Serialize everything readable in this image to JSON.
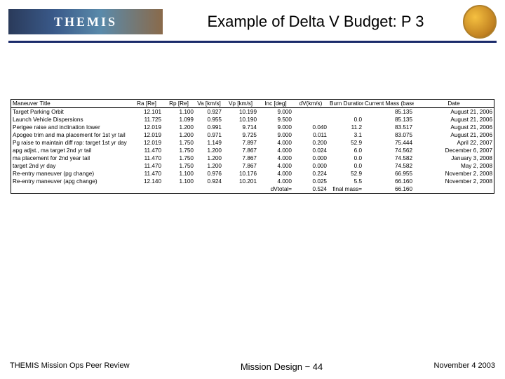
{
  "header": {
    "logo_text": "THEMIS",
    "title": "Example of Delta V Budget: P 3"
  },
  "table": {
    "columns": [
      {
        "key": "title",
        "label": "Maneuver Title",
        "align": "left"
      },
      {
        "key": "ra",
        "label": "Ra [Re]",
        "align": "right"
      },
      {
        "key": "rp",
        "label": "Rp [Re]",
        "align": "right"
      },
      {
        "key": "va",
        "label": "Va [km/s]",
        "align": "right"
      },
      {
        "key": "vp",
        "label": "Vp [km/s]",
        "align": "right"
      },
      {
        "key": "inc",
        "label": "Inc [deg]",
        "align": "right"
      },
      {
        "key": "dv",
        "label": "dV(km/s)",
        "align": "right"
      },
      {
        "key": "burn",
        "label": "Burn Duration",
        "align": "right"
      },
      {
        "key": "mass",
        "label": "Current Mass (base loading)",
        "align": "right"
      },
      {
        "key": "date",
        "label": "Date",
        "align": "right"
      }
    ],
    "rows": [
      [
        "Target Parking Orbit",
        "12.101",
        "1.100",
        "0.927",
        "10.199",
        "9.000",
        "",
        "",
        "85.135",
        "August 21, 2006"
      ],
      [
        "Launch Vehicle Dispersions",
        "11.725",
        "1.099",
        "0.955",
        "10.190",
        "9.500",
        "",
        "0.0",
        "85.135",
        "August 21, 2006"
      ],
      [
        "Perigee raise and inclination lower",
        "12.019",
        "1.200",
        "0.991",
        "9.714",
        "9.000",
        "0.040",
        "11.2",
        "83.517",
        "August 21, 2006"
      ],
      [
        "Apogee trim and ma placement for 1st yr tail",
        "12.019",
        "1.200",
        "0.971",
        "9.725",
        "9.000",
        "0.011",
        "3.1",
        "83.075",
        "August 21, 2006"
      ],
      [
        "Pg raise to maintain diff rap: target 1st yr day",
        "12.019",
        "1.750",
        "1.149",
        "7.897",
        "4.000",
        "0.200",
        "52.9",
        "75.444",
        "April 22, 2007"
      ],
      [
        "apg adjst., ma target 2nd yr tail",
        "11.470",
        "1.750",
        "1.200",
        "7.867",
        "4.000",
        "0.024",
        "6.0",
        "74.562",
        "December 6, 2007"
      ],
      [
        "ma placement for 2nd year tail",
        "11.470",
        "1.750",
        "1.200",
        "7.867",
        "4.000",
        "0.000",
        "0.0",
        "74.582",
        "January 3, 2008"
      ],
      [
        "target 2nd yr day",
        "11.470",
        "1.750",
        "1.200",
        "7.867",
        "4.000",
        "0.000",
        "0.0",
        "74.582",
        "May 2, 2008"
      ],
      [
        "Re-entry maneuver (pg change)",
        "11.470",
        "1.100",
        "0.976",
        "10.176",
        "4.000",
        "0.224",
        "52.9",
        "66.955",
        "November 2, 2008"
      ],
      [
        "Re-entry maneuver (apg change)",
        "12.140",
        "1.100",
        "0.924",
        "10.201",
        "4.000",
        "0.025",
        "5.5",
        "66.160",
        "November 2, 2008"
      ]
    ],
    "totals": {
      "dv_label": "dVtotal=",
      "dv_value": "0.524",
      "mass_label": "final mass=",
      "burn_blank": "",
      "mass_value": "66.160"
    }
  },
  "footer": {
    "left": "THEMIS Mission Ops Peer Review",
    "center": "Mission Design − 44",
    "right": "November 4 2003"
  }
}
